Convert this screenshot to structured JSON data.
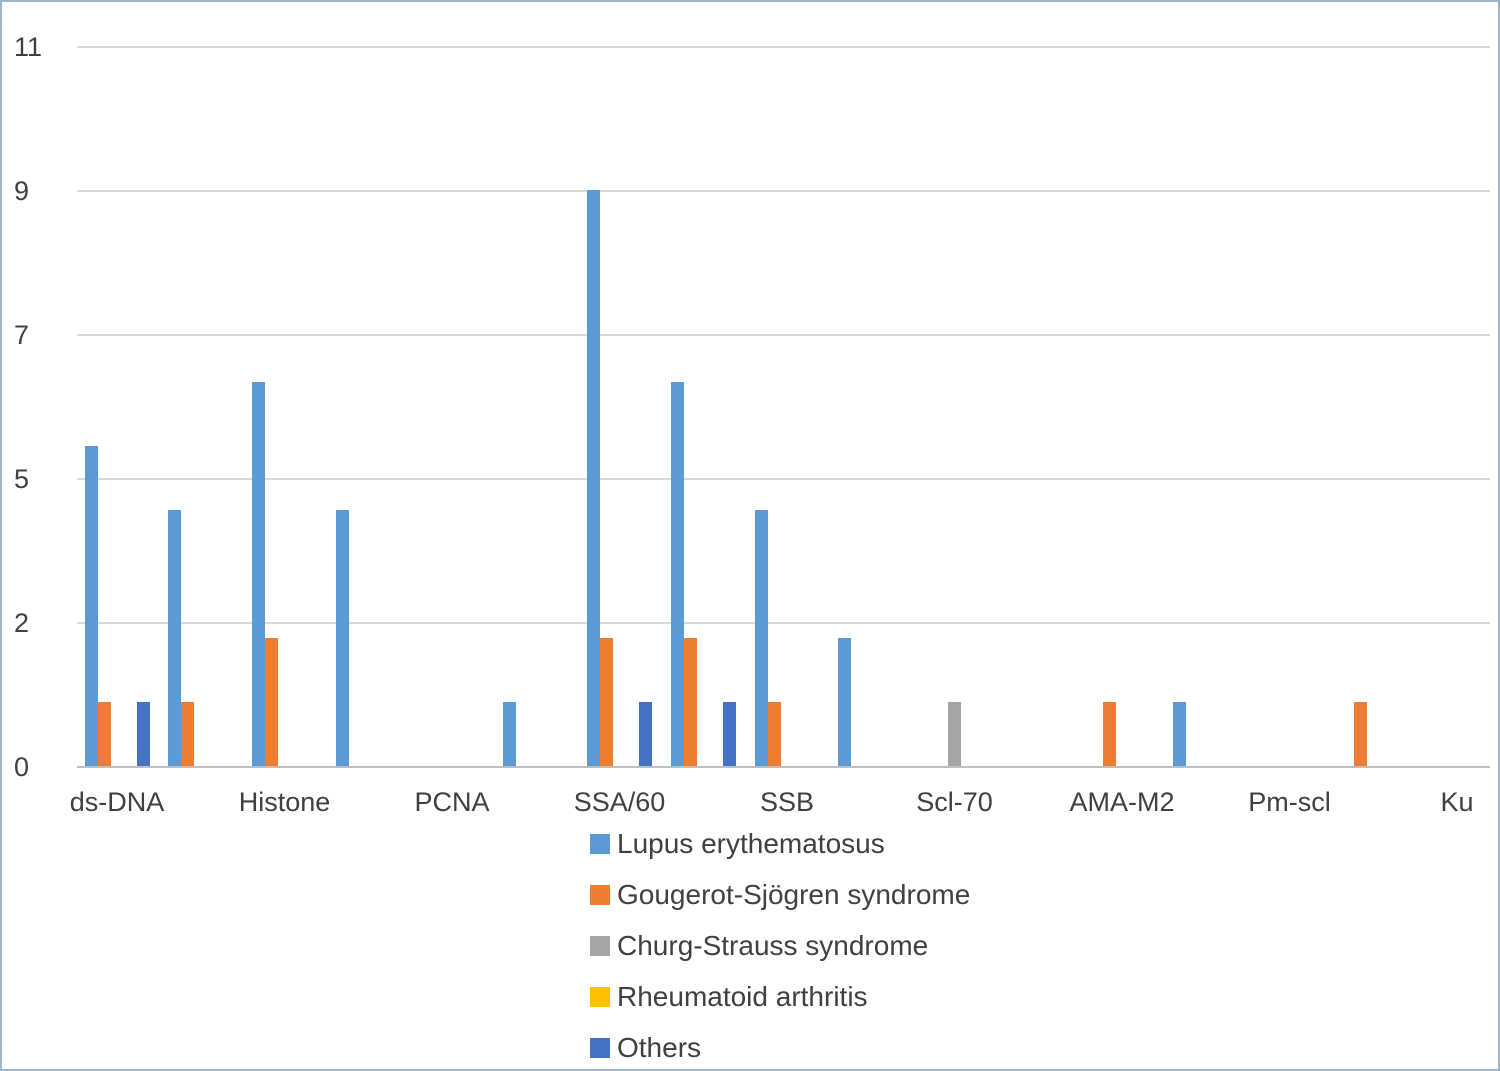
{
  "chart_data": {
    "type": "bar",
    "title": "",
    "xlabel": "",
    "ylabel": "",
    "grid": true,
    "legend_position": "bottom",
    "y_axis": {
      "tick_labels": [
        "0",
        "2",
        "5",
        "7",
        "9",
        "11"
      ],
      "tick_values": [
        0,
        2.25,
        4.5,
        6.75,
        9,
        11.25
      ],
      "max": 11.25
    },
    "categories": [
      "ds-DNA",
      "",
      "Histone",
      "",
      "PCNA",
      "",
      "SSA/60",
      "",
      "SSB",
      "",
      "Scl-70",
      "",
      "AMA-M2",
      "",
      "Pm-scl",
      "",
      "Ku"
    ],
    "series": [
      {
        "name": "Lupus erythematosus",
        "color": "#5B9BD5",
        "values": [
          5,
          4,
          6,
          4,
          0,
          1,
          9,
          6,
          4,
          2,
          0,
          0,
          0,
          1,
          0,
          0,
          0
        ]
      },
      {
        "name": "Gougerot-Sjögren syndrome",
        "color": "#ED7D31",
        "values": [
          1,
          1,
          2,
          0,
          0,
          0,
          2,
          2,
          1,
          0,
          0,
          0,
          1,
          0,
          0,
          1,
          0
        ]
      },
      {
        "name": "Churg-Strauss syndrome",
        "color": "#A5A5A5",
        "values": [
          0,
          0,
          0,
          0,
          0,
          0,
          0,
          0,
          0,
          0,
          1,
          0,
          0,
          0,
          0,
          0,
          0
        ]
      },
      {
        "name": "Rheumatoid arthritis",
        "color": "#FFC000",
        "values": [
          0,
          0,
          0,
          0,
          0,
          0,
          0,
          0,
          0,
          0,
          0,
          0,
          0,
          0,
          0,
          0,
          0
        ]
      },
      {
        "name": "Others",
        "color": "#4472C4",
        "values": [
          1,
          0,
          0,
          0,
          0,
          0,
          1,
          1,
          0,
          0,
          0,
          0,
          0,
          0,
          0,
          0,
          0
        ]
      }
    ]
  }
}
